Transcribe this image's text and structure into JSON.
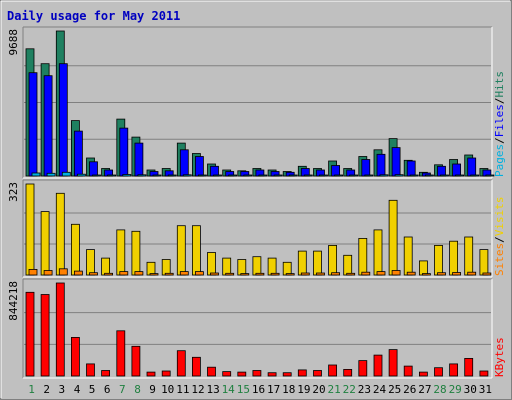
{
  "title": "Daily usage for May 2011",
  "colors": {
    "background": "#c0c0c0",
    "title": "#0000c0",
    "hits": "#1f8060",
    "files": "#0000ff",
    "pages": "#00b0e0",
    "visits": "#f0d000",
    "sites": "#ff8000",
    "kbytes": "#ff0000",
    "weekend_label": "#208040",
    "weekday_label": "#000000"
  },
  "days": [
    "1",
    "2",
    "3",
    "4",
    "5",
    "6",
    "7",
    "8",
    "9",
    "10",
    "11",
    "12",
    "13",
    "14",
    "15",
    "16",
    "17",
    "18",
    "19",
    "20",
    "21",
    "22",
    "23",
    "24",
    "25",
    "26",
    "27",
    "28",
    "29",
    "30",
    "31"
  ],
  "weekend_days": [
    "1",
    "7",
    "8",
    "14",
    "15",
    "21",
    "22",
    "28",
    "29"
  ],
  "chart_data": [
    {
      "type": "bar",
      "title": "Hits / Files / Pages",
      "ymax_label": "9688",
      "ylim": [
        0,
        9688
      ],
      "legend": [
        {
          "label": "Pages",
          "color": "#00b0e0"
        },
        {
          "label": "/",
          "color": "#000000"
        },
        {
          "label": "Files",
          "color": "#0000ff"
        },
        {
          "label": "/",
          "color": "#000000"
        },
        {
          "label": "Hits",
          "color": "#1f8060"
        }
      ],
      "series": [
        {
          "name": "Hits",
          "values": [
            8500,
            7500,
            9688,
            3700,
            1200,
            500,
            3800,
            2600,
            400,
            500,
            2200,
            1500,
            800,
            400,
            350,
            500,
            400,
            300,
            650,
            500,
            1000,
            500,
            1300,
            1750,
            2500,
            1050,
            250,
            750,
            1100,
            1400,
            500
          ]
        },
        {
          "name": "Files",
          "values": [
            6900,
            6700,
            7500,
            3000,
            950,
            400,
            3200,
            2200,
            300,
            350,
            1750,
            1300,
            650,
            300,
            300,
            400,
            300,
            250,
            500,
            400,
            700,
            400,
            1100,
            1450,
            1900,
            1000,
            200,
            650,
            800,
            1200,
            400
          ]
        },
        {
          "name": "Pages",
          "values": [
            200,
            180,
            250,
            120,
            60,
            40,
            100,
            80,
            40,
            40,
            80,
            60,
            50,
            40,
            40,
            40,
            30,
            30,
            50,
            40,
            60,
            40,
            70,
            80,
            90,
            60,
            30,
            40,
            60,
            70,
            40
          ]
        }
      ]
    },
    {
      "type": "bar",
      "title": "Visits / Sites",
      "ymax_label": "323",
      "ylim": [
        0,
        323
      ],
      "legend": [
        {
          "label": "Sites",
          "color": "#ff8000"
        },
        {
          "label": "/",
          "color": "#000000"
        },
        {
          "label": "Visits",
          "color": "#f0d000"
        }
      ],
      "series": [
        {
          "name": "Visits",
          "values": [
            323,
            225,
            290,
            180,
            90,
            60,
            160,
            155,
            45,
            55,
            175,
            175,
            80,
            60,
            55,
            65,
            60,
            45,
            85,
            85,
            105,
            70,
            130,
            160,
            265,
            135,
            50,
            105,
            120,
            135,
            90
          ]
        },
        {
          "name": "Sites",
          "values": [
            20,
            16,
            22,
            14,
            8,
            6,
            12,
            12,
            5,
            6,
            12,
            12,
            7,
            6,
            5,
            6,
            6,
            5,
            7,
            7,
            8,
            6,
            10,
            12,
            16,
            10,
            5,
            8,
            9,
            10,
            7
          ]
        }
      ]
    },
    {
      "type": "bar",
      "title": "KBytes",
      "ymax_label": "844218",
      "ylim": [
        0,
        844218
      ],
      "legend": [
        {
          "label": "KBytes",
          "color": "#ff0000"
        }
      ],
      "series": [
        {
          "name": "KBytes",
          "values": [
            760000,
            740000,
            844218,
            350000,
            110000,
            50000,
            410000,
            270000,
            35000,
            45000,
            230000,
            170000,
            80000,
            40000,
            35000,
            50000,
            30000,
            30000,
            55000,
            50000,
            100000,
            60000,
            140000,
            190000,
            240000,
            90000,
            35000,
            75000,
            110000,
            160000,
            45000
          ]
        }
      ]
    }
  ]
}
